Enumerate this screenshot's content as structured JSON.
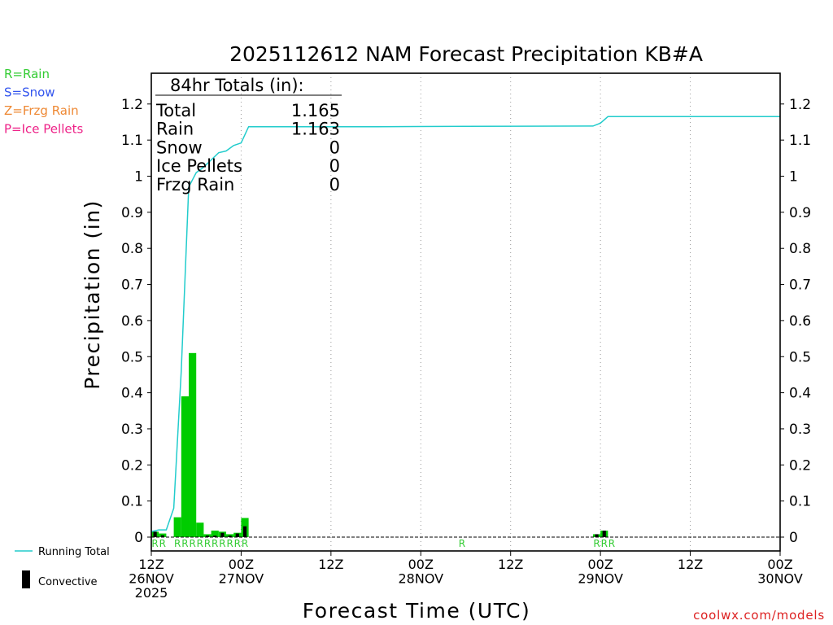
{
  "chart_data": {
    "type": "bar",
    "title": "2025112612 NAM Forecast Precipitation KB#A",
    "ylabel": "Precipitation (in)",
    "xlabel": "Forecast Time (UTC)",
    "ylim": [
      0,
      1.28
    ],
    "xlim": [
      0,
      84
    ],
    "y_ticks": [
      "0",
      "0.1",
      "0.2",
      "0.3",
      "0.4",
      "0.5",
      "0.6",
      "0.7",
      "0.8",
      "0.9",
      "1",
      "1.1",
      "1.2"
    ],
    "x_ticks": [
      {
        "hour": 0,
        "lines": [
          "12Z",
          "26NOV",
          "2025"
        ]
      },
      {
        "hour": 12,
        "lines": [
          "00Z",
          "27NOV"
        ]
      },
      {
        "hour": 24,
        "lines": [
          "12Z"
        ]
      },
      {
        "hour": 36,
        "lines": [
          "00Z",
          "28NOV"
        ]
      },
      {
        "hour": 48,
        "lines": [
          "12Z"
        ]
      },
      {
        "hour": 60,
        "lines": [
          "00Z",
          "29NOV"
        ]
      },
      {
        "hour": 72,
        "lines": [
          "12Z"
        ]
      },
      {
        "hour": 84,
        "lines": [
          "00Z",
          "30NOV"
        ]
      }
    ],
    "grid": "vertical-dotted",
    "totals_box": {
      "header": "84hr Totals (in):",
      "rows": [
        {
          "label": "Total",
          "value": "1.165"
        },
        {
          "label": "Rain",
          "value": "1.163"
        },
        {
          "label": "Snow",
          "value": "0"
        },
        {
          "label": "Ice Pellets",
          "value": "0"
        },
        {
          "label": "Frzg Rain",
          "value": "0"
        }
      ]
    },
    "type_legend": [
      {
        "text": "R=Rain",
        "color": "#33cc33"
      },
      {
        "text": "S=Snow",
        "color": "#3355ee"
      },
      {
        "text": "Z=Frzg Rain",
        "color": "#ee8833"
      },
      {
        "text": "P=Ice Pellets",
        "color": "#ee2288"
      }
    ],
    "series_legend": {
      "running_total": "Running Total",
      "convective": "Convective"
    },
    "precip_bars": [
      {
        "start": 0,
        "end": 1,
        "total": 0.015,
        "convective": 0.015
      },
      {
        "start": 1,
        "end": 2,
        "total": 0.01,
        "convective": 0.005
      },
      {
        "start": 3,
        "end": 4,
        "total": 0.055,
        "convective": 0.0
      },
      {
        "start": 4,
        "end": 5,
        "total": 0.39,
        "convective": 0.0
      },
      {
        "start": 5,
        "end": 6,
        "total": 0.51,
        "convective": 0.0
      },
      {
        "start": 6,
        "end": 7,
        "total": 0.04,
        "convective": 0.0
      },
      {
        "start": 7,
        "end": 8,
        "total": 0.008,
        "convective": 0.004
      },
      {
        "start": 8,
        "end": 9,
        "total": 0.018,
        "convective": 0.004
      },
      {
        "start": 9,
        "end": 10,
        "total": 0.015,
        "convective": 0.012
      },
      {
        "start": 10,
        "end": 11,
        "total": 0.008,
        "convective": 0.004
      },
      {
        "start": 11,
        "end": 12,
        "total": 0.012,
        "convective": 0.01
      },
      {
        "start": 12,
        "end": 13,
        "total": 0.053,
        "convective": 0.03
      },
      {
        "start": 59,
        "end": 60,
        "total": 0.008,
        "convective": 0.008
      },
      {
        "start": 60,
        "end": 61,
        "total": 0.018,
        "convective": 0.018
      }
    ],
    "running_total": [
      [
        0,
        0.015
      ],
      [
        1,
        0.02
      ],
      [
        2,
        0.02
      ],
      [
        3,
        0.08
      ],
      [
        4,
        0.46
      ],
      [
        5,
        0.97
      ],
      [
        6,
        1.01
      ],
      [
        7,
        1.025
      ],
      [
        8,
        1.045
      ],
      [
        9,
        1.065
      ],
      [
        10,
        1.07
      ],
      [
        11,
        1.085
      ],
      [
        12,
        1.092
      ],
      [
        13,
        1.137
      ],
      [
        30,
        1.137
      ],
      [
        42,
        1.138
      ],
      [
        59,
        1.139
      ],
      [
        60,
        1.147
      ],
      [
        61,
        1.165
      ],
      [
        84,
        1.165
      ]
    ],
    "type_codes": [
      {
        "hour": 0.5,
        "code": "R"
      },
      {
        "hour": 1.5,
        "code": "R"
      },
      {
        "hour": 3.5,
        "code": "R"
      },
      {
        "hour": 4.5,
        "code": "R"
      },
      {
        "hour": 5.5,
        "code": "R"
      },
      {
        "hour": 6.5,
        "code": "R"
      },
      {
        "hour": 7.5,
        "code": "R"
      },
      {
        "hour": 8.5,
        "code": "R"
      },
      {
        "hour": 9.5,
        "code": "R"
      },
      {
        "hour": 10.5,
        "code": "R"
      },
      {
        "hour": 11.5,
        "code": "R"
      },
      {
        "hour": 12.5,
        "code": "R"
      },
      {
        "hour": 41.5,
        "code": "R"
      },
      {
        "hour": 59.5,
        "code": "R"
      },
      {
        "hour": 60.5,
        "code": "R"
      },
      {
        "hour": 61.5,
        "code": "R"
      }
    ],
    "colors": {
      "precip": "#00cc00",
      "convective": "#000000",
      "running_total": "#22cccc",
      "type_code": "#33cc33",
      "watermark": "#dd2222",
      "grid": "#999999",
      "axis": "#000000"
    }
  },
  "watermark": "coolwx.com/models"
}
